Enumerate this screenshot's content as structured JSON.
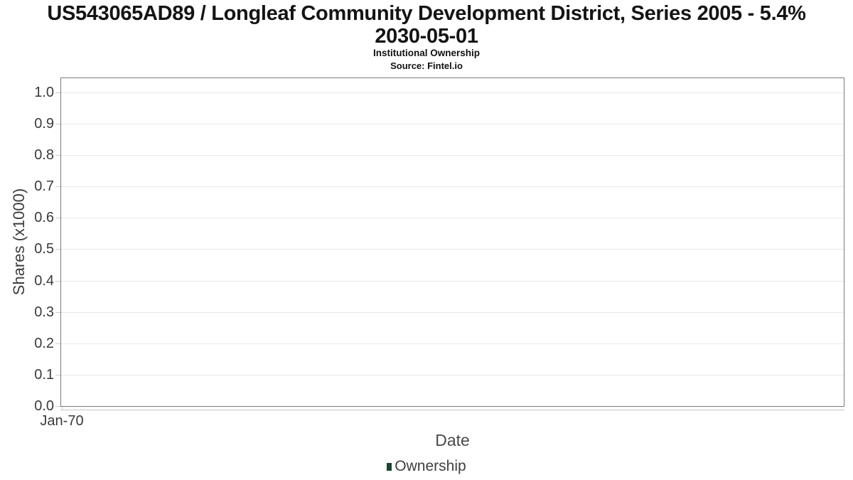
{
  "header": {
    "title_line1": "US543065AD89 / Longleaf Community Development District, Series 2005 - 5.4%",
    "title_line2": "2030-05-01",
    "subtitle": "Institutional Ownership",
    "source": "Source: Fintel.io"
  },
  "chart_data": {
    "type": "line",
    "title": "US543065AD89 / Longleaf Community Development District, Series 2005 - 5.4% 2030-05-01",
    "subtitle": "Institutional Ownership",
    "source_note": "Source: Fintel.io",
    "xlabel": "Date",
    "ylabel": "Shares (x1000)",
    "x_tick_labels": [
      "Jan-70"
    ],
    "y_ticks": [
      0.0,
      0.1,
      0.2,
      0.3,
      0.4,
      0.5,
      0.6,
      0.7,
      0.8,
      0.9,
      1.0
    ],
    "ylim": [
      0,
      1.045
    ],
    "grid": true,
    "legend_position": "bottom",
    "series": [
      {
        "name": "Ownership",
        "color": "#1a472f",
        "points": []
      }
    ]
  },
  "colors": {
    "plot_border": "#7b7b7b",
    "gridline": "#e9e9e9",
    "tick": "#cccccc",
    "legend_green": "#1a472f"
  }
}
